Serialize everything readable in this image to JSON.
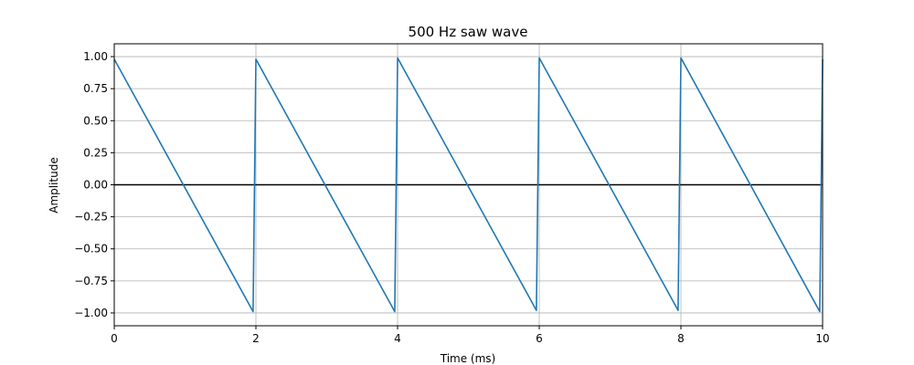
{
  "chart_data": {
    "type": "line",
    "title": "500 Hz saw wave",
    "xlabel": "Time (ms)",
    "ylabel": "Amplitude",
    "xlim": [
      0,
      10
    ],
    "ylim": [
      -1.1,
      1.1
    ],
    "x_ticks": [
      0,
      2,
      4,
      6,
      8,
      10
    ],
    "x_tick_labels": [
      "0",
      "2",
      "4",
      "6",
      "8",
      "10"
    ],
    "y_ticks": [
      1.0,
      0.75,
      0.5,
      0.25,
      0.0,
      -0.25,
      -0.5,
      -0.75,
      -1.0
    ],
    "y_tick_labels": [
      "1.00",
      "0.75",
      "0.50",
      "0.25",
      "0.00",
      "−0.25",
      "−0.50",
      "−0.75",
      "−1.00"
    ],
    "grid": true,
    "reference_line": {
      "y": 0,
      "color": "#000000"
    },
    "series": [
      {
        "color": "#1f77b4",
        "x": [
          0,
          1.96,
          2.0,
          3.96,
          4.0,
          5.96,
          6.0,
          7.96,
          8.0,
          9.96,
          10.0
        ],
        "y": [
          0.98,
          -0.99,
          0.98,
          -0.99,
          0.99,
          -0.98,
          0.99,
          -0.98,
          0.99,
          -0.99,
          0.98
        ]
      }
    ]
  }
}
